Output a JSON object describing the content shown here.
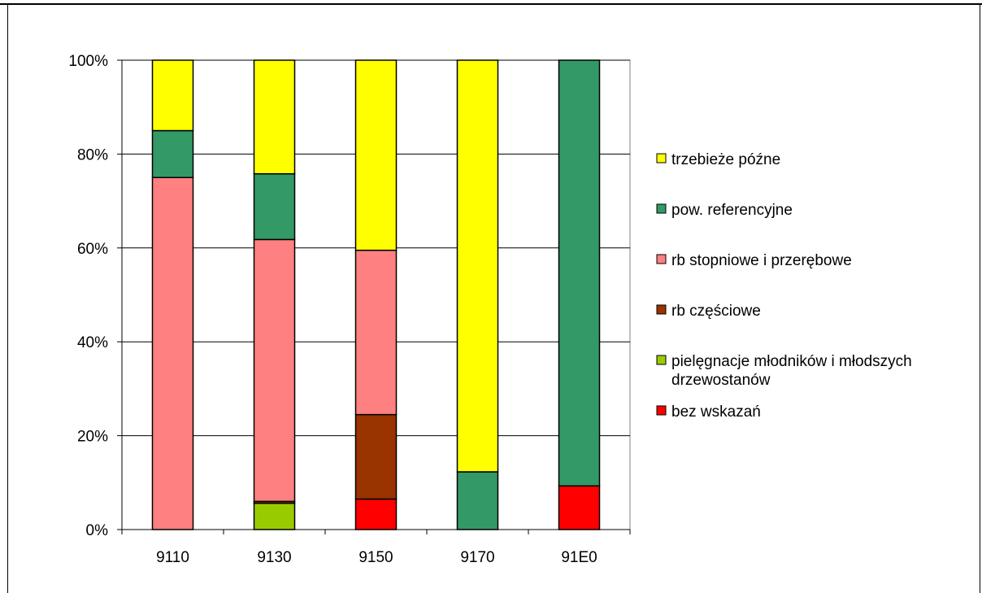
{
  "chart_data": {
    "type": "bar",
    "stacked": true,
    "normalized": true,
    "categories": [
      "9110",
      "9130",
      "9150",
      "9170",
      "91E0"
    ],
    "series": [
      {
        "name": "bez wskazań",
        "color": "#ff0000",
        "values": [
          0,
          0,
          6.5,
          0,
          9.3
        ]
      },
      {
        "name": "pielęgnacje młodników i młodszych drzewostanów",
        "color": "#99cc00",
        "values": [
          0,
          5.6,
          0,
          0,
          0
        ]
      },
      {
        "name": "rb częściowe",
        "color": "#993300",
        "values": [
          0,
          0.4,
          18.0,
          0,
          0
        ]
      },
      {
        "name": "rb stopniowe i przerębowe",
        "color": "#ff8080",
        "values": [
          75.0,
          55.8,
          35.0,
          0,
          0
        ]
      },
      {
        "name": "pow. referencyjne",
        "color": "#339966",
        "values": [
          10.0,
          14.0,
          0,
          12.3,
          90.7
        ]
      },
      {
        "name": "trzebieże późne",
        "color": "#ffff00",
        "values": [
          15.0,
          24.2,
          40.5,
          87.7,
          0
        ]
      }
    ],
    "ylim": [
      0,
      100
    ],
    "yticks": [
      "0%",
      "20%",
      "40%",
      "60%",
      "80%",
      "100%"
    ],
    "ytick_values": [
      0,
      20,
      40,
      60,
      80,
      100
    ],
    "grid": true,
    "plot_background": "#ffffff",
    "legend_position": "right",
    "title": "",
    "xlabel": "",
    "ylabel": ""
  }
}
